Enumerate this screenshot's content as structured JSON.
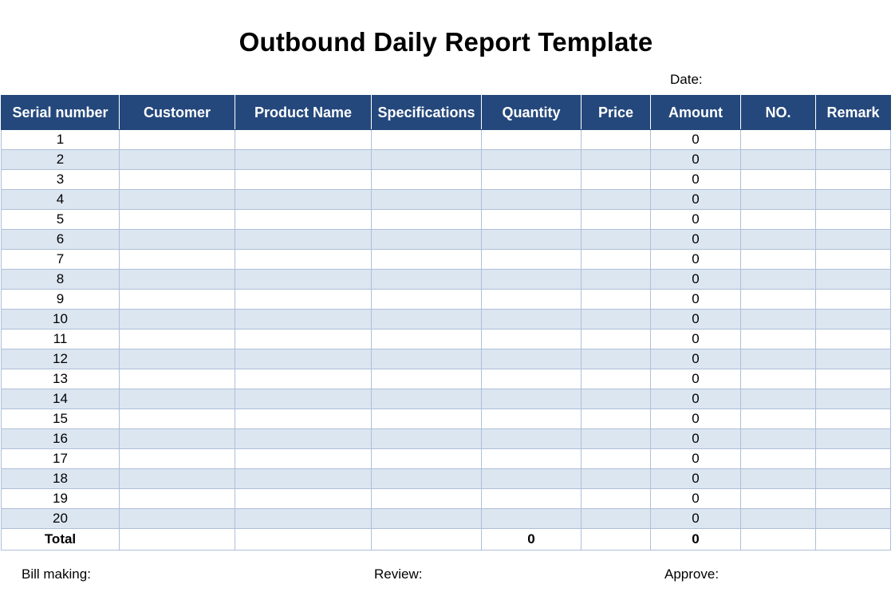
{
  "title": "Outbound Daily Report Template",
  "date_label": "Date:",
  "columns": [
    "Serial number",
    "Customer",
    "Product Name",
    "Specifications",
    "Quantity",
    "Price",
    "Amount",
    "NO.",
    "Remark"
  ],
  "rows": [
    {
      "serial": "1",
      "amount": "0"
    },
    {
      "serial": "2",
      "amount": "0"
    },
    {
      "serial": "3",
      "amount": "0"
    },
    {
      "serial": "4",
      "amount": "0"
    },
    {
      "serial": "5",
      "amount": "0"
    },
    {
      "serial": "6",
      "amount": "0"
    },
    {
      "serial": "7",
      "amount": "0"
    },
    {
      "serial": "8",
      "amount": "0"
    },
    {
      "serial": "9",
      "amount": "0"
    },
    {
      "serial": "10",
      "amount": "0"
    },
    {
      "serial": "11",
      "amount": "0"
    },
    {
      "serial": "12",
      "amount": "0"
    },
    {
      "serial": "13",
      "amount": "0"
    },
    {
      "serial": "14",
      "amount": "0"
    },
    {
      "serial": "15",
      "amount": "0"
    },
    {
      "serial": "16",
      "amount": "0"
    },
    {
      "serial": "17",
      "amount": "0"
    },
    {
      "serial": "18",
      "amount": "0"
    },
    {
      "serial": "19",
      "amount": "0"
    },
    {
      "serial": "20",
      "amount": "0"
    }
  ],
  "total": {
    "label": "Total",
    "quantity": "0",
    "amount": "0"
  },
  "footer": {
    "bill_making": "Bill making:",
    "review": "Review:",
    "approve": "Approve:"
  },
  "colors": {
    "header_bg": "#24487c",
    "alt_row_bg": "#dce6f1",
    "grid": "#aebfd8"
  }
}
